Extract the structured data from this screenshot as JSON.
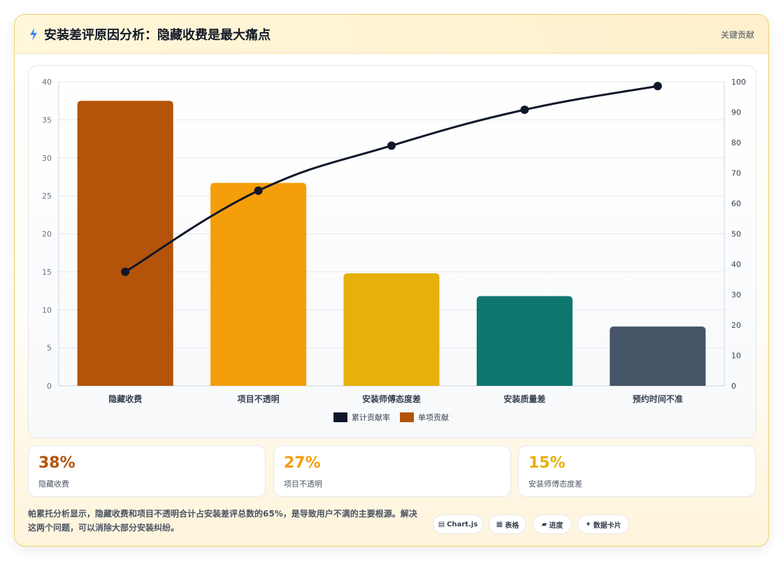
{
  "header": {
    "title": "安装差评原因分析：隐藏收费是最大痛点",
    "tag": "关键贡献",
    "icon": "bolt-icon"
  },
  "chart_data": {
    "type": "bar",
    "categories": [
      "隐藏收费",
      "项目不透明",
      "安装师傅态度差",
      "安装质量差",
      "预约时间不准"
    ],
    "series": [
      {
        "name": "单项贡献",
        "type": "bar",
        "axis": "left",
        "values": [
          37.5,
          26.7,
          14.8,
          11.8,
          7.8
        ],
        "colors": [
          "#b45309",
          "#f59e0b",
          "#e5b10a",
          "#0f766e",
          "#475569"
        ]
      },
      {
        "name": "累计贡献率",
        "type": "line",
        "axis": "right",
        "values": [
          37.5,
          64.2,
          79.0,
          90.8,
          98.6
        ],
        "color": "#0f172a"
      }
    ],
    "y_left": {
      "ylim": [
        0,
        40
      ],
      "ticks": [
        "0",
        "5",
        "10",
        "15",
        "20",
        "25",
        "30",
        "35",
        "40"
      ]
    },
    "y_right": {
      "ylim": [
        0,
        100
      ],
      "ticks": [
        "0",
        "10",
        "20",
        "30",
        "40",
        "50",
        "60",
        "70",
        "80",
        "90",
        "100"
      ]
    },
    "legend": [
      "累计贡献率",
      "单项贡献"
    ],
    "legend_position": "bottom-center",
    "grid": true
  },
  "stats": [
    {
      "value": "38%",
      "label": "隐藏收费",
      "color": "#b45309"
    },
    {
      "value": "27%",
      "label": "项目不透明",
      "color": "#f59e0b"
    },
    {
      "value": "15%",
      "label": "安装师傅态度差",
      "color": "#e5b10a"
    }
  ],
  "summary": "帕累托分析显示，隐藏收费和项目不透明合计占安装差评总数的65%，是导致用户不满的主要根源。解决这两个问题，可以消除大部分安装纠纷。",
  "pills": [
    {
      "icon": "▤",
      "label": "Chart.js"
    },
    {
      "icon": "▦",
      "label": "表格"
    },
    {
      "icon": "▰",
      "label": "进度"
    },
    {
      "icon": "✦",
      "label": "数据卡片"
    }
  ]
}
